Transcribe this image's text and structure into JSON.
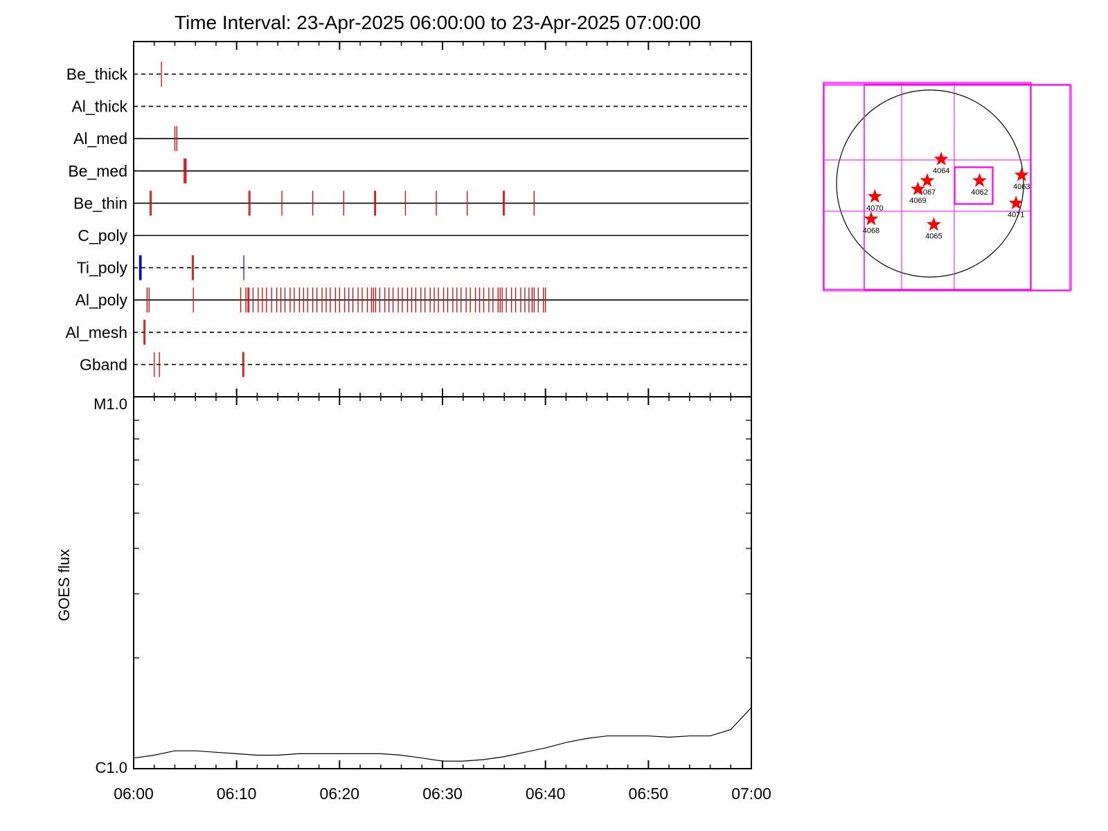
{
  "chart_data": [
    {
      "type": "timeline",
      "title": "Time Interval: 23-Apr-2025 06:00:00 to 23-Apr-2025 07:00:00",
      "xlim": [
        "06:00",
        "07:00"
      ],
      "x_unit": "minutes",
      "filters": [
        {
          "name": "Be_thick",
          "line": "dashed",
          "events_min": [
            2.7
          ],
          "color": "#e00000"
        },
        {
          "name": "Al_thick",
          "line": "dashed",
          "events_min": [],
          "color": "#e00000"
        },
        {
          "name": "Al_med",
          "line": "solid",
          "events_min": [
            4.0,
            4.2
          ],
          "color": "#e00000"
        },
        {
          "name": "Be_med",
          "line": "solid",
          "events_min": [
            4.9,
            5.0,
            5.1
          ],
          "color": "#e00000"
        },
        {
          "name": "Be_thin",
          "line": "solid",
          "events_min": [
            1.6,
            1.7,
            11.2,
            11.3,
            14.4,
            17.4,
            20.4,
            23.4,
            23.5,
            26.4,
            29.4,
            32.4,
            35.9,
            36.0,
            38.9
          ],
          "color": "#e00000"
        },
        {
          "name": "C_poly",
          "line": "solid",
          "events_min": [],
          "color": "#e00000"
        },
        {
          "name": "Ti_poly",
          "line": "dashed",
          "events_min": [
            5.7,
            5.8
          ],
          "color": "#e00000",
          "blue_events_min": [
            0.6,
            0.7,
            10.7
          ]
        },
        {
          "name": "Al_poly",
          "line": "solid",
          "events_min": [
            1.3,
            1.5,
            5.8,
            10.4,
            10.9,
            11.1,
            11.2,
            11.6,
            12.1,
            12.5,
            12.9,
            13.4,
            13.9,
            14.3,
            14.7,
            15.2,
            15.6,
            16.1,
            16.5,
            16.9,
            17.4,
            17.8,
            18.3,
            18.7,
            19.1,
            19.6,
            20.0,
            20.5,
            20.9,
            21.3,
            21.8,
            22.2,
            22.7,
            23.1,
            23.3,
            23.5,
            23.9,
            24.4,
            24.8,
            25.2,
            25.7,
            26.1,
            26.6,
            27.0,
            27.4,
            27.9,
            28.3,
            28.8,
            29.2,
            29.6,
            30.1,
            30.5,
            31.0,
            31.4,
            31.8,
            32.3,
            32.7,
            33.2,
            33.6,
            34.0,
            34.5,
            34.9,
            35.4,
            35.6,
            35.8,
            36.2,
            36.7,
            37.1,
            37.6,
            38.0,
            38.4,
            38.7,
            38.9,
            39.3,
            39.8,
            40.0
          ],
          "color": "#e00000"
        },
        {
          "name": "Al_mesh",
          "line": "dashed",
          "events_min": [
            1.0,
            1.1
          ],
          "color": "#e00000"
        },
        {
          "name": "Gband",
          "line": "dashed",
          "events_min": [
            2.0,
            2.5,
            10.6,
            10.7
          ],
          "color": "#e00000"
        }
      ]
    },
    {
      "type": "line",
      "title": "",
      "xlabel": "",
      "ylabel": "GOES flux",
      "x_ticks": [
        "06:00",
        "06:10",
        "06:20",
        "06:30",
        "06:40",
        "06:50",
        "07:00"
      ],
      "y_ticks": [
        "C1.0",
        "M1.0"
      ],
      "y_scale": "log",
      "ylim": [
        1e-06,
        1e-05
      ],
      "series": [
        {
          "line_color": "#000000",
          "x_min": [
            0,
            2,
            4,
            6,
            8,
            10,
            12,
            14,
            16,
            18,
            20,
            22,
            24,
            26,
            28,
            30,
            32,
            34,
            36,
            38,
            40,
            42,
            44,
            46,
            48,
            50,
            52,
            54,
            56,
            58,
            60
          ],
          "y": [
            1.06e-06,
            1.08e-06,
            1.11e-06,
            1.11e-06,
            1.1e-06,
            1.09e-06,
            1.08e-06,
            1.08e-06,
            1.09e-06,
            1.09e-06,
            1.09e-06,
            1.09e-06,
            1.09e-06,
            1.08e-06,
            1.06e-06,
            1.04e-06,
            1.04e-06,
            1.05e-06,
            1.07e-06,
            1.1e-06,
            1.13e-06,
            1.17e-06,
            1.2e-06,
            1.22e-06,
            1.22e-06,
            1.22e-06,
            1.21e-06,
            1.22e-06,
            1.22e-06,
            1.27e-06,
            1.46e-06
          ]
        }
      ]
    },
    {
      "type": "map",
      "title": "",
      "disk_color": "#000000",
      "box_color": "#ff00ff",
      "marker_color": "#ff0000",
      "regions": [
        {
          "label": "4064",
          "x": 0.12,
          "y": 0.26
        },
        {
          "label": "4067",
          "x": -0.03,
          "y": 0.03
        },
        {
          "label": "4069",
          "x": -0.13,
          "y": -0.06
        },
        {
          "label": "4062",
          "x": 0.53,
          "y": 0.03
        },
        {
          "label": "4063",
          "x": 0.98,
          "y": 0.09
        },
        {
          "label": "4070",
          "x": -0.59,
          "y": -0.14
        },
        {
          "label": "4071",
          "x": 0.92,
          "y": -0.21
        },
        {
          "label": "4068",
          "x": -0.63,
          "y": -0.38
        },
        {
          "label": "4065",
          "x": 0.04,
          "y": -0.44
        }
      ]
    }
  ]
}
